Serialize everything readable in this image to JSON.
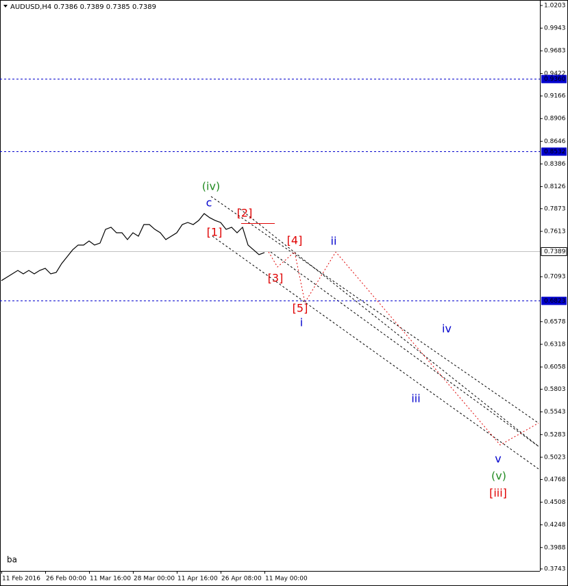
{
  "chart_data": {
    "type": "line",
    "title": "AUDUSD,H4  0.7386 0.7389 0.7385 0.7389",
    "categories": [
      "11 Feb 2016",
      null,
      null,
      null,
      null,
      null,
      null,
      null,
      "26 Feb 00:00",
      null,
      null,
      null,
      null,
      null,
      null,
      null,
      "11 Mar 16:00",
      null,
      null,
      null,
      null,
      null,
      null,
      null,
      "28 Mar 00:00",
      null,
      null,
      null,
      null,
      null,
      null,
      null,
      "11 Apr 16:00",
      null,
      null,
      null,
      null,
      null,
      null,
      null,
      "26 Apr 08:00",
      null,
      null,
      null,
      null,
      null,
      null,
      null,
      "11 May 00:00"
    ],
    "series": [
      {
        "name": "AUDUSD",
        "color": "#000000",
        "values": [
          0.7048,
          0.7087,
          0.7126,
          0.7165,
          0.7126,
          0.7165,
          0.7126,
          0.7165,
          0.7189,
          0.7126,
          0.7142,
          0.7244,
          0.7322,
          0.7401,
          0.7456,
          0.7456,
          0.7503,
          0.7456,
          0.7479,
          0.7636,
          0.766,
          0.7597,
          0.7597,
          0.7519,
          0.7597,
          0.7558,
          0.7691,
          0.7691,
          0.7636,
          0.7597,
          0.7519,
          0.7558,
          0.7597,
          0.7691,
          0.7715,
          0.7691,
          0.7738,
          0.7817,
          0.777,
          0.7738,
          0.7715,
          0.7636,
          0.766,
          0.7597,
          0.766,
          0.7456,
          0.7401,
          0.7346,
          0.737
        ]
      }
    ],
    "ylim": [
      0.3743,
      1.0203
    ],
    "yticks": [
      1.0203,
      0.9943,
      0.9683,
      0.9422,
      0.9166,
      0.8906,
      0.8646,
      0.8386,
      0.8126,
      0.7873,
      0.7613,
      0.7093,
      0.6578,
      0.6318,
      0.6058,
      0.5803,
      0.5543,
      0.5283,
      0.5023,
      0.4768,
      0.4508,
      0.4248,
      0.3988,
      0.3743
    ],
    "levels": [
      {
        "value": 0.936,
        "label": "0.9360"
      },
      {
        "value": 0.8532,
        "label": "0.8532"
      },
      {
        "value": 0.6823,
        "label": "0.6823"
      }
    ],
    "level_color": "#0000cd",
    "last_price": 0.7389,
    "annotations": [
      {
        "text": "(iv)",
        "color": "#228b22"
      },
      {
        "text": "c",
        "color": "#0000cd"
      },
      {
        "text": "[2]",
        "color": "#e00000"
      },
      {
        "text": "[1]",
        "color": "#e00000"
      },
      {
        "text": "[4]",
        "color": "#e00000"
      },
      {
        "text": "ii",
        "color": "#0000cd"
      },
      {
        "text": "[3]",
        "color": "#e00000"
      },
      {
        "text": "[5]",
        "color": "#e00000"
      },
      {
        "text": "i",
        "color": "#0000cd"
      },
      {
        "text": "iv",
        "color": "#0000cd"
      },
      {
        "text": "iii",
        "color": "#0000cd"
      },
      {
        "text": "v",
        "color": "#0000cd"
      },
      {
        "text": "(v)",
        "color": "#228b22"
      },
      {
        "text": "[iii]",
        "color": "#e00000"
      }
    ],
    "footer": "ba"
  }
}
